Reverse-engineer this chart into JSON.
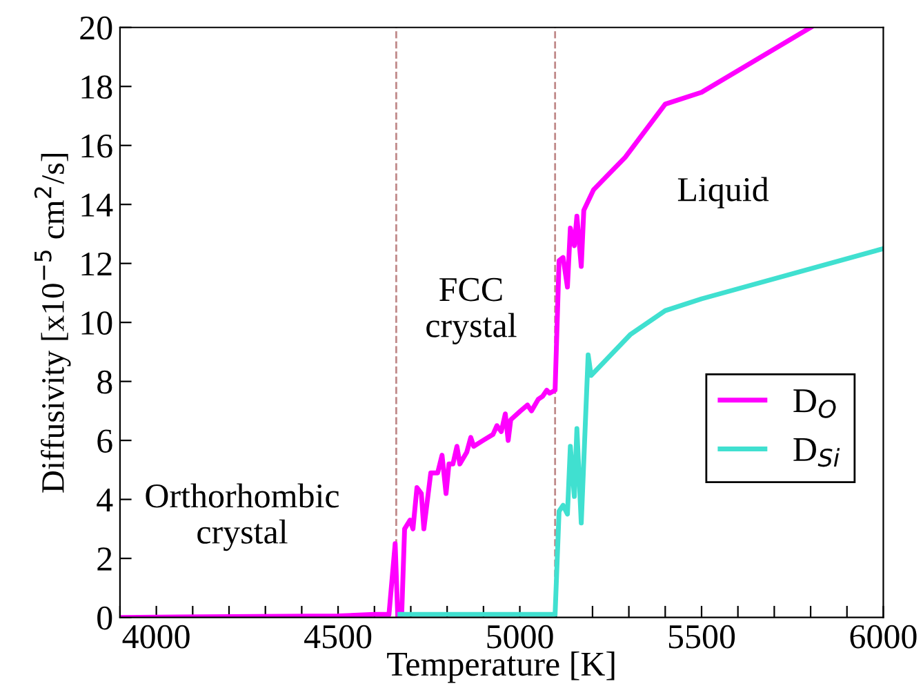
{
  "chart_data": {
    "type": "line",
    "xlabel": "Temperature [K]",
    "ylabel": "Diffusivity [x10$^{−5}$ cm$^{2}$/s]",
    "xlim": [
      3900,
      6000
    ],
    "ylim": [
      0,
      20
    ],
    "xticks": [
      {
        "value": 3900,
        "label": null
      },
      4000,
      {
        "value": 4100,
        "label": null
      },
      {
        "value": 4200,
        "label": null
      },
      {
        "value": 4300,
        "label": null
      },
      {
        "value": 4400,
        "label": null
      },
      4500,
      {
        "value": 4600,
        "label": null
      },
      {
        "value": 4700,
        "label": null
      },
      {
        "value": 4800,
        "label": null
      },
      {
        "value": 4900,
        "label": null
      },
      5000,
      {
        "value": 5100,
        "label": null
      },
      {
        "value": 5200,
        "label": null
      },
      {
        "value": 5300,
        "label": null
      },
      {
        "value": 5400,
        "label": null
      },
      5500,
      {
        "value": 5600,
        "label": null
      },
      {
        "value": 5700,
        "label": null
      },
      {
        "value": 5800,
        "label": null
      },
      {
        "value": 5900,
        "label": null
      },
      6000
    ],
    "yticks": [
      0,
      2,
      4,
      6,
      8,
      10,
      12,
      14,
      16,
      18,
      20
    ],
    "grid": false,
    "legend": "bottom right",
    "marker": "none",
    "line_style": "solid",
    "annotations": [
      "Orthorhombic\ncrystal",
      "FCC\ncrystal",
      "Liquid"
    ],
    "ref_lines": [
      {
        "axis": "x",
        "value": 4660,
        "color": "#c08a8a",
        "line_style": "dashed"
      },
      {
        "axis": "x",
        "value": 5097,
        "color": "#c08a8a",
        "line_style": "dashed"
      }
    ],
    "series": [
      {
        "name": "D$_{O}$",
        "color": "#ff00ff",
        "x": [
          3900,
          4500,
          4600,
          4640,
          4657,
          4664,
          4675,
          4683,
          4698,
          4706,
          4717,
          4729,
          4736,
          4755,
          4774,
          4786,
          4797,
          4805,
          4816,
          4827,
          4835,
          4854,
          4865,
          4873,
          4899,
          4926,
          4937,
          4949,
          4960,
          4968,
          4975,
          5002,
          5021,
          5032,
          5051,
          5063,
          5074,
          5082,
          5097,
          5108,
          5119,
          5131,
          5139,
          5150,
          5157,
          5169,
          5176,
          5203,
          5290,
          5400,
          5500,
          5800
        ],
        "values": [
          0,
          0.05,
          0.1,
          0.1,
          2.5,
          0.1,
          0.1,
          3.0,
          3.3,
          3.0,
          4.4,
          4.2,
          3.0,
          4.9,
          4.9,
          5.5,
          4.2,
          5.2,
          5.2,
          5.8,
          5.2,
          5.6,
          6.1,
          5.8,
          6.0,
          6.2,
          6.5,
          6.3,
          6.9,
          6.0,
          6.7,
          7.0,
          7.2,
          7.0,
          7.4,
          7.5,
          7.7,
          7.6,
          7.7,
          12.1,
          12.2,
          11.2,
          13.2,
          12.6,
          13.6,
          11.9,
          13.8,
          14.5,
          15.6,
          17.4,
          17.8,
          20.0
        ]
      },
      {
        "name": "D$_{Si}$",
        "color": "#40e0d0",
        "x": [
          4670,
          4800,
          5000,
          5097,
          5108,
          5119,
          5131,
          5139,
          5150,
          5157,
          5169,
          5188,
          5196,
          5305,
          5400,
          5500,
          6000
        ],
        "values": [
          0.1,
          0.1,
          0.1,
          0.1,
          3.6,
          3.8,
          3.5,
          5.8,
          4.1,
          6.4,
          3.2,
          8.9,
          8.2,
          9.6,
          10.4,
          10.8,
          12.5
        ]
      }
    ]
  }
}
